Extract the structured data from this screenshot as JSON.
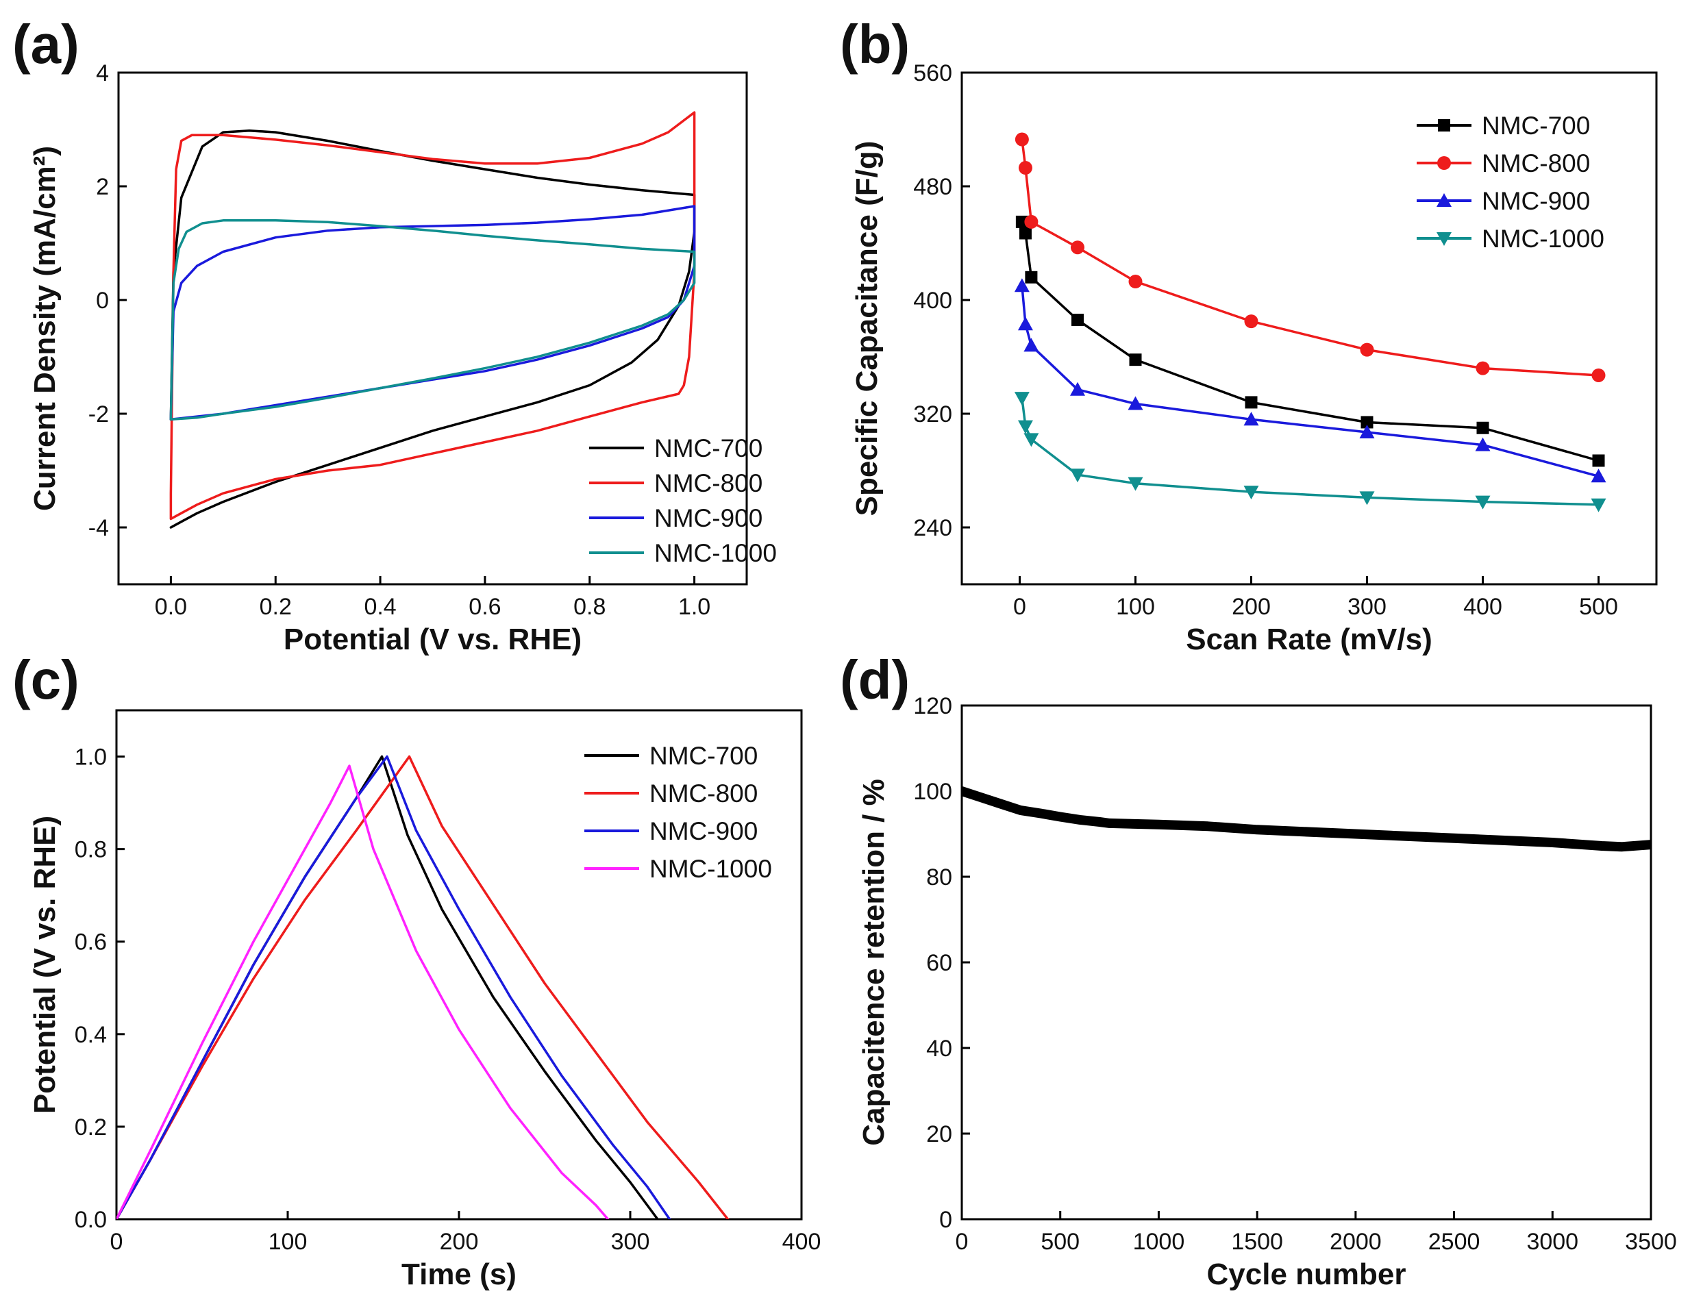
{
  "chart_data": [
    {
      "panel": "(a)",
      "type": "line",
      "title": "",
      "xlabel": "Potential (V vs. RHE)",
      "ylabel": "Current Density (mA/cm²)",
      "xlim": [
        -0.1,
        1.1
      ],
      "ylim": [
        -5,
        4
      ],
      "xticks": [
        0.0,
        0.2,
        0.4,
        0.6,
        0.8,
        1.0
      ],
      "xtick_labels": [
        "0.0",
        "0.2",
        "0.4",
        "0.6",
        "0.8",
        "1.0"
      ],
      "yticks": [
        -4,
        -2,
        0,
        2,
        4
      ],
      "ytick_labels": [
        "-4",
        "-2",
        "0",
        "2",
        "4"
      ],
      "legend_position": "bottom-right",
      "show_markers": false,
      "series": [
        {
          "name": "NMC-700",
          "color": "#000000",
          "x": [
            0,
            0.005,
            0.02,
            0.06,
            0.1,
            0.15,
            0.2,
            0.3,
            0.4,
            0.5,
            0.6,
            0.7,
            0.8,
            0.9,
            1.0,
            1.0,
            0.99,
            0.97,
            0.93,
            0.88,
            0.8,
            0.7,
            0.6,
            0.5,
            0.4,
            0.3,
            0.2,
            0.1,
            0.05,
            0.02,
            0
          ],
          "y": [
            -2.1,
            0.5,
            1.8,
            2.7,
            2.95,
            2.98,
            2.95,
            2.8,
            2.62,
            2.45,
            2.3,
            2.15,
            2.03,
            1.93,
            1.85,
            1.2,
            0.5,
            -0.1,
            -0.7,
            -1.1,
            -1.5,
            -1.8,
            -2.05,
            -2.3,
            -2.6,
            -2.9,
            -3.2,
            -3.55,
            -3.75,
            -3.9,
            -4.0
          ]
        },
        {
          "name": "NMC-800",
          "color": "#ee1c1c",
          "x": [
            0,
            0.005,
            0.01,
            0.02,
            0.04,
            0.1,
            0.2,
            0.3,
            0.4,
            0.5,
            0.6,
            0.7,
            0.8,
            0.9,
            0.95,
            1.0,
            1.0,
            0.99,
            0.98,
            0.97,
            0.9,
            0.8,
            0.7,
            0.6,
            0.5,
            0.4,
            0.3,
            0.2,
            0.1,
            0.05,
            0,
            0
          ],
          "y": [
            -3.4,
            0.5,
            2.3,
            2.8,
            2.9,
            2.9,
            2.82,
            2.72,
            2.6,
            2.48,
            2.4,
            2.4,
            2.5,
            2.75,
            2.95,
            3.3,
            0.5,
            -1.0,
            -1.5,
            -1.65,
            -1.8,
            -2.05,
            -2.3,
            -2.5,
            -2.7,
            -2.9,
            -3.0,
            -3.15,
            -3.4,
            -3.6,
            -3.85,
            -3.4
          ]
        },
        {
          "name": "NMC-900",
          "color": "#1a1adc",
          "x": [
            0,
            0.005,
            0.02,
            0.05,
            0.1,
            0.2,
            0.3,
            0.4,
            0.5,
            0.6,
            0.7,
            0.8,
            0.9,
            1.0,
            1.0,
            0.98,
            0.95,
            0.9,
            0.8,
            0.7,
            0.6,
            0.5,
            0.4,
            0.3,
            0.2,
            0.1,
            0.05,
            0
          ],
          "y": [
            -2.1,
            -0.2,
            0.3,
            0.6,
            0.85,
            1.1,
            1.22,
            1.28,
            1.3,
            1.32,
            1.36,
            1.42,
            1.5,
            1.65,
            0.6,
            0.0,
            -0.3,
            -0.5,
            -0.8,
            -1.05,
            -1.25,
            -1.4,
            -1.55,
            -1.7,
            -1.85,
            -2.0,
            -2.05,
            -2.1
          ]
        },
        {
          "name": "NMC-1000",
          "color": "#108f8f",
          "x": [
            0,
            0.005,
            0.015,
            0.03,
            0.06,
            0.1,
            0.2,
            0.3,
            0.4,
            0.5,
            0.6,
            0.7,
            0.8,
            0.9,
            1.0,
            1.0,
            0.98,
            0.95,
            0.9,
            0.8,
            0.7,
            0.6,
            0.5,
            0.4,
            0.3,
            0.2,
            0.1,
            0.05,
            0
          ],
          "y": [
            -2.1,
            0.3,
            0.9,
            1.2,
            1.35,
            1.4,
            1.4,
            1.37,
            1.3,
            1.22,
            1.13,
            1.05,
            0.98,
            0.9,
            0.85,
            0.3,
            0.0,
            -0.25,
            -0.45,
            -0.75,
            -1.0,
            -1.2,
            -1.38,
            -1.55,
            -1.72,
            -1.88,
            -2.0,
            -2.07,
            -2.1
          ]
        }
      ]
    },
    {
      "panel": "(b)",
      "type": "line",
      "title": "",
      "xlabel": "Scan Rate (mV/s)",
      "ylabel": "Specific Capacitance (F/g)",
      "xlim": [
        -50,
        550
      ],
      "ylim": [
        200,
        560
      ],
      "xticks": [
        0,
        100,
        200,
        300,
        400,
        500
      ],
      "xtick_labels": [
        "0",
        "100",
        "200",
        "300",
        "400",
        "500"
      ],
      "yticks": [
        240,
        320,
        400,
        480,
        560
      ],
      "ytick_labels": [
        "240",
        "320",
        "400",
        "480",
        "560"
      ],
      "legend_position": "top-right",
      "show_markers": true,
      "series": [
        {
          "name": "NMC-700",
          "color": "#000000",
          "marker": "square",
          "x": [
            2,
            5,
            10,
            50,
            100,
            200,
            300,
            400,
            500
          ],
          "y": [
            455,
            447,
            416,
            386,
            358,
            328,
            314,
            310,
            287
          ]
        },
        {
          "name": "NMC-800",
          "color": "#ee1c1c",
          "marker": "circle",
          "x": [
            2,
            5,
            10,
            50,
            100,
            200,
            300,
            400,
            500
          ],
          "y": [
            513,
            493,
            455,
            437,
            413,
            385,
            365,
            352,
            347
          ]
        },
        {
          "name": "NMC-900",
          "color": "#1a1adc",
          "marker": "triangle-up",
          "x": [
            2,
            5,
            10,
            50,
            100,
            200,
            300,
            400,
            500
          ],
          "y": [
            410,
            383,
            368,
            337,
            327,
            316,
            307,
            298,
            276
          ]
        },
        {
          "name": "NMC-1000",
          "color": "#108f8f",
          "marker": "triangle-down",
          "x": [
            2,
            5,
            10,
            50,
            100,
            200,
            300,
            400,
            500
          ],
          "y": [
            331,
            311,
            302,
            277,
            271,
            265,
            261,
            258,
            256
          ]
        }
      ]
    },
    {
      "panel": "(c)",
      "type": "line",
      "title": "",
      "xlabel": "Time (s)",
      "ylabel": "Potential (V vs. RHE)",
      "xlim": [
        0,
        400
      ],
      "ylim": [
        0,
        1.1
      ],
      "xticks": [
        0,
        100,
        200,
        300,
        400
      ],
      "xtick_labels": [
        "0",
        "100",
        "200",
        "300",
        "400"
      ],
      "yticks": [
        0.0,
        0.2,
        0.4,
        0.6,
        0.8,
        1.0
      ],
      "ytick_labels": [
        "0.0",
        "0.2",
        "0.4",
        "0.6",
        "0.8",
        "1.0"
      ],
      "legend_position": "top-right",
      "show_markers": false,
      "series": [
        {
          "name": "NMC-700",
          "color": "#000000",
          "x": [
            0,
            20,
            50,
            80,
            110,
            140,
            155,
            170,
            190,
            220,
            250,
            280,
            300,
            316
          ],
          "y": [
            0,
            0.13,
            0.34,
            0.55,
            0.74,
            0.91,
            1.0,
            0.83,
            0.67,
            0.48,
            0.32,
            0.17,
            0.08,
            0
          ]
        },
        {
          "name": "NMC-800",
          "color": "#ee1c1c",
          "x": [
            0,
            20,
            50,
            80,
            110,
            140,
            171,
            190,
            220,
            250,
            280,
            310,
            340,
            357
          ],
          "y": [
            0,
            0.13,
            0.33,
            0.52,
            0.69,
            0.84,
            1.0,
            0.85,
            0.68,
            0.51,
            0.36,
            0.21,
            0.08,
            0
          ]
        },
        {
          "name": "NMC-900",
          "color": "#1a1adc",
          "x": [
            0,
            20,
            50,
            80,
            110,
            140,
            158,
            175,
            200,
            230,
            260,
            290,
            310,
            323
          ],
          "y": [
            0,
            0.13,
            0.34,
            0.55,
            0.74,
            0.91,
            1.0,
            0.84,
            0.67,
            0.48,
            0.31,
            0.16,
            0.07,
            0
          ]
        },
        {
          "name": "NMC-1000",
          "color": "#ff22ff",
          "x": [
            0,
            20,
            50,
            80,
            110,
            125,
            136,
            150,
            175,
            200,
            230,
            260,
            280,
            287
          ],
          "y": [
            0,
            0.15,
            0.38,
            0.6,
            0.8,
            0.9,
            0.98,
            0.8,
            0.58,
            0.41,
            0.24,
            0.1,
            0.03,
            0
          ]
        }
      ]
    },
    {
      "panel": "(d)",
      "type": "line",
      "title": "",
      "xlabel": "Cycle number",
      "ylabel": "Capacitence retention / %",
      "xlim": [
        0,
        3500
      ],
      "ylim": [
        0,
        120
      ],
      "xticks": [
        0,
        500,
        1000,
        1500,
        2000,
        2500,
        3000,
        3500
      ],
      "xtick_labels": [
        "0",
        "500",
        "1000",
        "1500",
        "2000",
        "2500",
        "3000",
        "3500"
      ],
      "yticks": [
        0,
        20,
        40,
        60,
        80,
        100,
        120
      ],
      "ytick_labels": [
        "0",
        "20",
        "40",
        "60",
        "80",
        "100",
        "120"
      ],
      "legend_position": "none",
      "show_markers": false,
      "series": [
        {
          "name": "Capacitance retention",
          "color": "#000000",
          "x": [
            0,
            100,
            200,
            300,
            400,
            500,
            600,
            700,
            750,
            1000,
            1250,
            1500,
            2000,
            2500,
            3000,
            3250,
            3350,
            3500
          ],
          "y": [
            100,
            98.5,
            97,
            95.5,
            94.8,
            94,
            93.3,
            92.8,
            92.5,
            92.2,
            91.8,
            91,
            90,
            89,
            88,
            87.2,
            87,
            87.5
          ]
        }
      ]
    }
  ]
}
